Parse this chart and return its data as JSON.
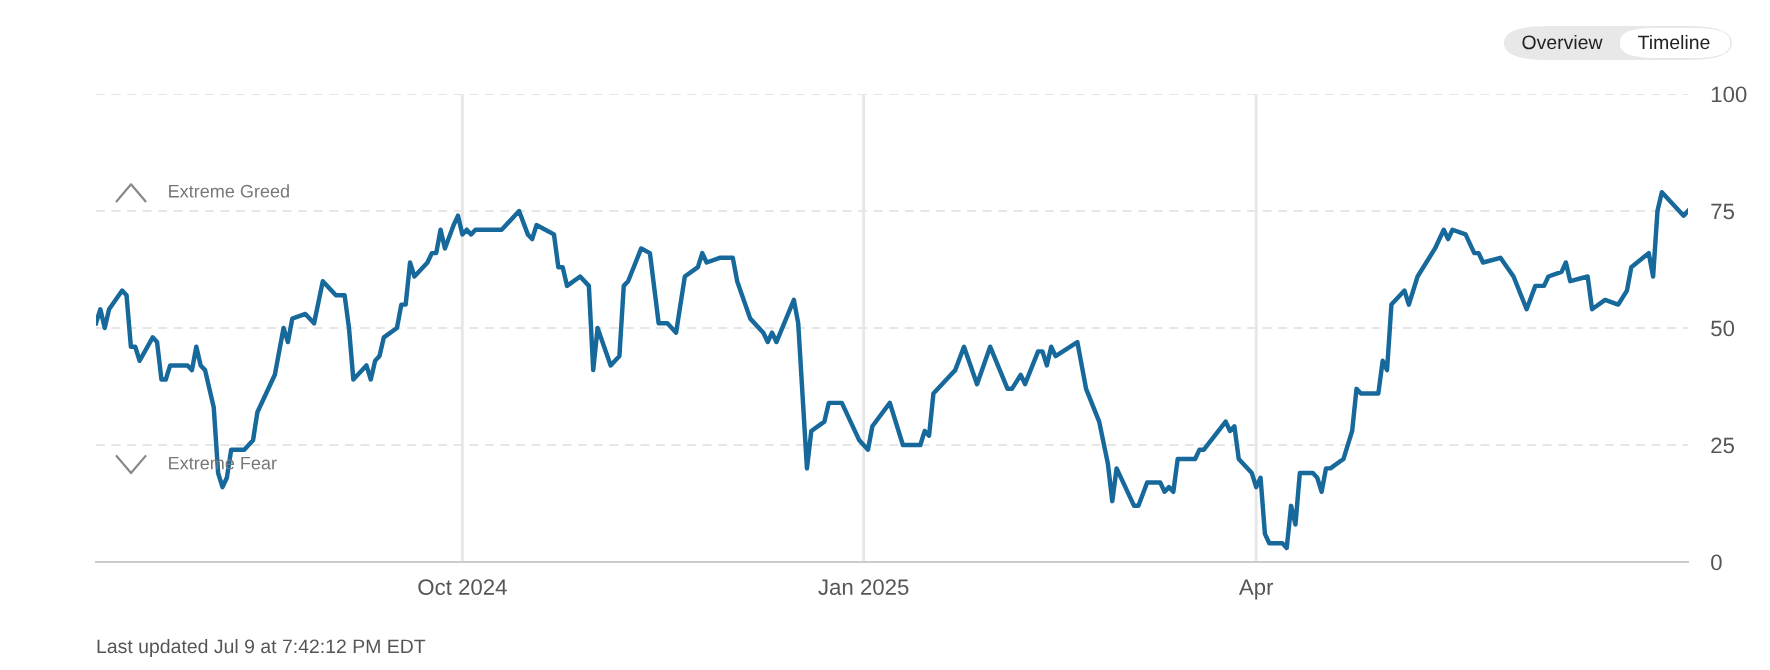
{
  "chart_data": {
    "type": "line",
    "x": [
      "2024-07-09",
      "2024-07-10",
      "2024-07-11",
      "2024-07-12",
      "2024-07-15",
      "2024-07-16",
      "2024-07-17",
      "2024-07-18",
      "2024-07-19",
      "2024-07-22",
      "2024-07-23",
      "2024-07-24",
      "2024-07-25",
      "2024-07-26",
      "2024-07-30",
      "2024-07-31",
      "2024-08-01",
      "2024-08-02",
      "2024-08-03",
      "2024-08-05",
      "2024-08-06",
      "2024-08-07",
      "2024-08-08",
      "2024-08-09",
      "2024-08-12",
      "2024-08-14",
      "2024-08-15",
      "2024-08-19",
      "2024-08-21",
      "2024-08-22",
      "2024-08-23",
      "2024-08-26",
      "2024-08-28",
      "2024-08-30",
      "2024-09-02",
      "2024-09-04",
      "2024-09-05",
      "2024-09-06",
      "2024-09-09",
      "2024-09-10",
      "2024-09-11",
      "2024-09-12",
      "2024-09-13",
      "2024-09-16",
      "2024-09-17",
      "2024-09-18",
      "2024-09-19",
      "2024-09-20",
      "2024-09-23",
      "2024-09-24",
      "2024-09-25",
      "2024-09-26",
      "2024-09-27",
      "2024-09-29",
      "2024-09-30",
      "2024-10-01",
      "2024-10-02",
      "2024-10-03",
      "2024-10-04",
      "2024-10-07",
      "2024-10-09",
      "2024-10-10",
      "2024-10-14",
      "2024-10-16",
      "2024-10-17",
      "2024-10-18",
      "2024-10-20",
      "2024-10-22",
      "2024-10-23",
      "2024-10-24",
      "2024-10-25",
      "2024-10-28",
      "2024-10-30",
      "2024-10-31",
      "2024-11-01",
      "2024-11-04",
      "2024-11-06",
      "2024-11-07",
      "2024-11-08",
      "2024-11-11",
      "2024-11-13",
      "2024-11-15",
      "2024-11-17",
      "2024-11-18",
      "2024-11-19",
      "2024-11-21",
      "2024-11-24",
      "2024-11-25",
      "2024-11-26",
      "2024-11-29",
      "2024-12-02",
      "2024-12-03",
      "2024-12-06",
      "2024-12-09",
      "2024-12-10",
      "2024-12-11",
      "2024-12-12",
      "2024-12-16",
      "2024-12-17",
      "2024-12-19",
      "2024-12-20",
      "2024-12-23",
      "2024-12-24",
      "2024-12-27",
      "2024-12-31",
      "2025-01-02",
      "2025-01-03",
      "2025-01-07",
      "2025-01-10",
      "2025-01-14",
      "2025-01-15",
      "2025-01-16",
      "2025-01-17",
      "2025-01-21",
      "2025-01-22",
      "2025-01-24",
      "2025-01-27",
      "2025-01-30",
      "2025-02-03",
      "2025-02-04",
      "2025-02-06",
      "2025-02-07",
      "2025-02-10",
      "2025-02-11",
      "2025-02-12",
      "2025-02-13",
      "2025-02-14",
      "2025-02-19",
      "2025-02-21",
      "2025-02-24",
      "2025-02-26",
      "2025-02-27",
      "2025-02-28",
      "2025-03-04",
      "2025-03-05",
      "2025-03-07",
      "2025-03-10",
      "2025-03-11",
      "2025-03-12",
      "2025-03-13",
      "2025-03-14",
      "2025-03-18",
      "2025-03-19",
      "2025-03-20",
      "2025-03-25",
      "2025-03-26",
      "2025-03-27",
      "2025-03-28",
      "2025-03-31",
      "2025-04-01",
      "2025-04-02",
      "2025-04-03",
      "2025-04-04",
      "2025-04-07",
      "2025-04-08",
      "2025-04-09",
      "2025-04-10",
      "2025-04-11",
      "2025-04-14",
      "2025-04-15",
      "2025-04-16",
      "2025-04-17",
      "2025-04-18",
      "2025-04-21",
      "2025-04-23",
      "2025-04-24",
      "2025-04-25",
      "2025-04-29",
      "2025-04-30",
      "2025-05-01",
      "2025-05-02",
      "2025-05-05",
      "2025-05-06",
      "2025-05-08",
      "2025-05-12",
      "2025-05-14",
      "2025-05-15",
      "2025-05-16",
      "2025-05-19",
      "2025-05-21",
      "2025-05-22",
      "2025-05-23",
      "2025-05-27",
      "2025-05-30",
      "2025-06-02",
      "2025-06-04",
      "2025-06-06",
      "2025-06-07",
      "2025-06-10",
      "2025-06-11",
      "2025-06-12",
      "2025-06-16",
      "2025-06-17",
      "2025-06-20",
      "2025-06-23",
      "2025-06-25",
      "2025-06-26",
      "2025-06-30",
      "2025-07-01",
      "2025-07-02",
      "2025-07-03",
      "2025-07-08",
      "2025-07-09"
    ],
    "series": [
      {
        "color": "#17699b",
        "values": [
          51,
          54,
          50,
          54,
          58,
          57,
          46,
          46,
          43,
          48,
          47,
          39,
          39,
          42,
          42,
          41,
          46,
          42,
          41,
          33,
          19,
          16,
          18,
          24,
          24,
          26,
          32,
          40,
          50,
          47,
          52,
          53,
          51,
          60,
          57,
          57,
          50,
          39,
          42,
          39,
          43,
          44,
          48,
          50,
          55,
          55,
          64,
          61,
          64,
          66,
          66,
          71,
          67,
          72,
          74,
          70,
          71,
          70,
          71,
          71,
          71,
          71,
          75,
          70,
          69,
          72,
          71,
          70,
          63,
          63,
          59,
          61,
          59,
          41,
          50,
          42,
          44,
          59,
          60,
          67,
          66,
          51,
          51,
          50,
          49,
          61,
          63,
          66,
          64,
          65,
          65,
          60,
          52,
          49,
          47,
          49,
          47,
          56,
          51,
          20,
          28,
          30,
          34,
          34,
          26,
          24,
          29,
          34,
          25,
          25,
          28,
          27,
          36,
          40,
          41,
          46,
          38,
          46,
          37,
          37,
          40,
          38,
          45,
          45,
          42,
          46,
          44,
          47,
          37,
          30,
          21,
          13,
          20,
          12,
          12,
          17,
          17,
          15,
          16,
          15,
          22,
          22,
          24,
          24,
          30,
          28,
          29,
          22,
          19,
          16,
          18,
          6,
          4,
          4,
          3,
          12,
          8,
          19,
          19,
          18,
          15,
          20,
          20,
          22,
          28,
          37,
          36,
          36,
          43,
          41,
          55,
          58,
          55,
          61,
          67,
          71,
          69,
          71,
          70,
          66,
          66,
          64,
          65,
          61,
          54,
          59,
          59,
          61,
          62,
          64,
          60,
          61,
          54,
          56,
          55,
          58,
          63,
          66,
          61,
          75,
          79,
          74,
          75
        ]
      }
    ],
    "xlim": [
      "2024-07-09",
      "2025-07-09"
    ],
    "xticks": [
      {
        "value": "2024-10-01",
        "label": "Oct 2024"
      },
      {
        "value": "2025-01-01",
        "label": "Jan 2025"
      },
      {
        "value": "2025-04-01",
        "label": "Apr"
      }
    ],
    "ylim": [
      0,
      100
    ],
    "yticks": [
      0,
      25,
      50,
      75,
      100
    ],
    "grid": true,
    "annotations": [
      "Extreme Greed",
      "Extreme Fear",
      "Last updated Jul 9 at 7:42:12 PM EDT",
      "Overview",
      "Timeline"
    ]
  }
}
